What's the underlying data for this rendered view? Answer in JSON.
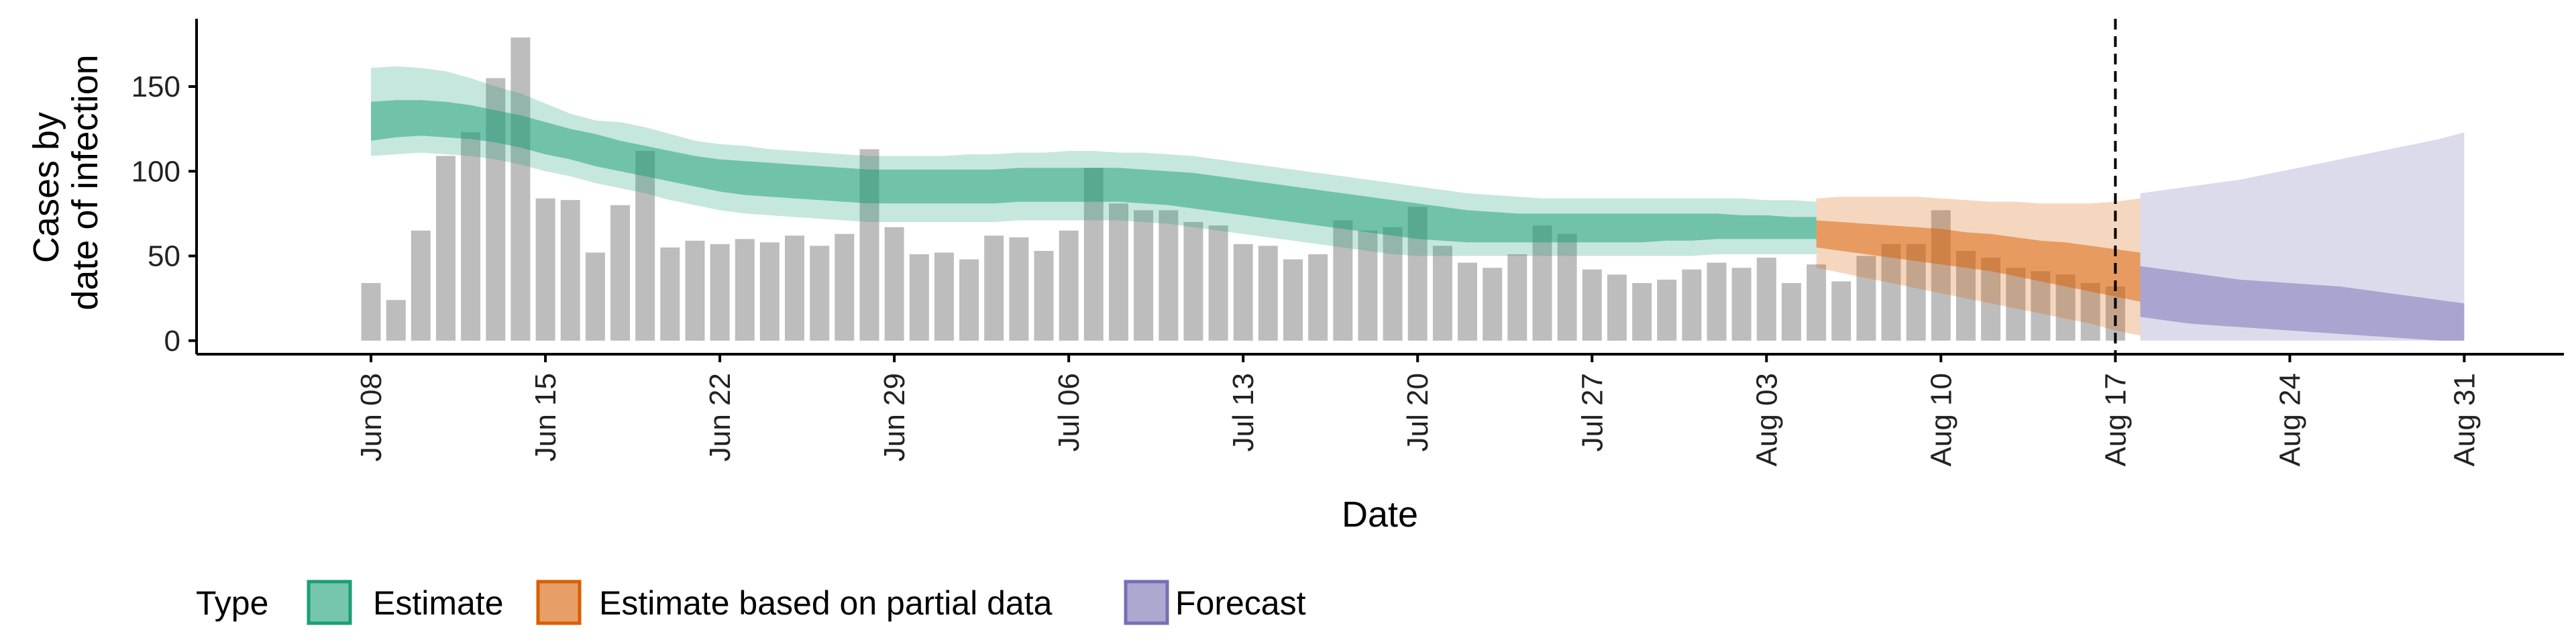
{
  "chart_data": {
    "type": "bar",
    "xlabel": "Date",
    "ylabel": [
      "Cases by",
      "date of infection"
    ],
    "ylim": [
      -8,
      190
    ],
    "yticks": [
      0,
      50,
      100,
      150
    ],
    "x_range": [
      "2020-06-01",
      "2020-09-04"
    ],
    "date_ticks": [
      {
        "date": "2020-06-08",
        "label": "Jun 08"
      },
      {
        "date": "2020-06-15",
        "label": "Jun 15"
      },
      {
        "date": "2020-06-22",
        "label": "Jun 22"
      },
      {
        "date": "2020-06-29",
        "label": "Jun 29"
      },
      {
        "date": "2020-07-06",
        "label": "Jul 06"
      },
      {
        "date": "2020-07-13",
        "label": "Jul 13"
      },
      {
        "date": "2020-07-20",
        "label": "Jul 20"
      },
      {
        "date": "2020-07-27",
        "label": "Jul 27"
      },
      {
        "date": "2020-08-03",
        "label": "Aug 03"
      },
      {
        "date": "2020-08-10",
        "label": "Aug 10"
      },
      {
        "date": "2020-08-17",
        "label": "Aug 17"
      },
      {
        "date": "2020-08-24",
        "label": "Aug 24"
      },
      {
        "date": "2020-08-31",
        "label": "Aug 31"
      }
    ],
    "vline_date": "2020-08-17",
    "bars": {
      "start_date": "2020-06-08",
      "color": "#bdbdbd",
      "values": [
        34,
        24,
        65,
        109,
        123,
        155,
        179,
        84,
        83,
        52,
        80,
        112,
        55,
        59,
        57,
        60,
        58,
        62,
        56,
        63,
        113,
        67,
        51,
        52,
        48,
        62,
        61,
        53,
        65,
        102,
        81,
        77,
        77,
        70,
        68,
        57,
        56,
        48,
        51,
        71,
        65,
        67,
        79,
        56,
        46,
        43,
        51,
        68,
        63,
        42,
        39,
        34,
        36,
        42,
        46,
        43,
        49,
        34,
        45,
        35,
        50,
        57,
        57,
        77,
        53,
        49,
        43,
        41,
        39,
        34,
        32
      ]
    },
    "series": [
      {
        "name": "Estimate",
        "color": "#1b9e77",
        "start_date": "2020-06-08",
        "median": [
          128,
          130,
          131,
          130,
          128,
          125,
          122,
          119,
          115,
          112,
          109,
          106,
          103,
          100,
          98,
          97,
          96,
          95,
          94,
          93,
          92,
          92,
          92,
          92,
          92,
          92,
          93,
          93,
          93,
          93,
          93,
          92,
          91,
          90,
          88,
          86,
          84,
          82,
          80,
          78,
          76,
          74,
          72,
          71,
          70,
          69,
          68,
          67,
          67,
          67,
          67,
          67,
          67,
          67,
          67,
          67,
          67,
          66,
          66
        ],
        "inner": [
          [
            118,
            120,
            121,
            120,
            119,
            117,
            114,
            110,
            107,
            103,
            100,
            97,
            94,
            91,
            88,
            86,
            85,
            84,
            83,
            82,
            81,
            81,
            81,
            81,
            81,
            81,
            82,
            82,
            82,
            82,
            82,
            81,
            80,
            78,
            76,
            74,
            72,
            70,
            68,
            66,
            64,
            62,
            60,
            59,
            58,
            58,
            58,
            58,
            58,
            58,
            58,
            58,
            59,
            59,
            60,
            60,
            60,
            60,
            60
          ],
          [
            141,
            142,
            142,
            141,
            139,
            136,
            133,
            129,
            125,
            122,
            118,
            115,
            112,
            109,
            107,
            106,
            105,
            104,
            103,
            102,
            101,
            101,
            101,
            101,
            101,
            101,
            102,
            102,
            102,
            102,
            102,
            101,
            100,
            99,
            97,
            95,
            93,
            91,
            89,
            87,
            85,
            83,
            81,
            79,
            77,
            76,
            75,
            75,
            75,
            75,
            75,
            75,
            75,
            75,
            75,
            74,
            74,
            73,
            73
          ]
        ],
        "outer": [
          [
            109,
            110,
            111,
            110,
            109,
            107,
            104,
            100,
            97,
            93,
            90,
            87,
            83,
            80,
            77,
            75,
            74,
            73,
            72,
            71,
            70,
            70,
            70,
            70,
            70,
            70,
            71,
            71,
            71,
            71,
            71,
            70,
            69,
            67,
            65,
            63,
            61,
            59,
            57,
            55,
            53,
            51,
            50,
            50,
            50,
            50,
            50,
            50,
            50,
            50,
            50,
            50,
            50,
            50,
            51,
            51,
            51,
            51,
            51
          ],
          [
            161,
            162,
            161,
            159,
            155,
            150,
            146,
            140,
            134,
            130,
            129,
            126,
            122,
            118,
            116,
            115,
            113,
            112,
            111,
            110,
            109,
            109,
            109,
            109,
            110,
            110,
            111,
            111,
            112,
            112,
            111,
            111,
            110,
            109,
            107,
            105,
            103,
            101,
            99,
            97,
            95,
            93,
            91,
            89,
            87,
            86,
            85,
            84,
            84,
            84,
            84,
            84,
            84,
            84,
            84,
            84,
            83,
            83,
            82
          ]
        ]
      },
      {
        "name": "Estimate based on partial data",
        "color": "#d95f02",
        "start_date": "2020-08-05",
        "median": [
          65,
          63,
          61,
          60,
          58,
          56,
          54,
          52,
          50,
          47,
          45,
          43,
          40,
          38
        ],
        "inner": [
          [
            55,
            53,
            51,
            49,
            47,
            45,
            43,
            41,
            38,
            35,
            32,
            29,
            26,
            23
          ],
          [
            71,
            70,
            69,
            68,
            67,
            66,
            64,
            63,
            61,
            59,
            58,
            56,
            54,
            52
          ]
        ],
        "outer": [
          [
            43,
            40,
            37,
            34,
            31,
            28,
            25,
            22,
            19,
            16,
            13,
            10,
            6,
            3
          ],
          [
            84,
            85,
            85,
            85,
            85,
            84,
            83,
            82,
            82,
            81,
            81,
            81,
            82,
            84
          ]
        ]
      },
      {
        "name": "Forecast",
        "color": "#7570b3",
        "start_date": "2020-08-18",
        "median": [
          29,
          28,
          27,
          26,
          25,
          24,
          23,
          22,
          21,
          20,
          19,
          18,
          17,
          16
        ],
        "inner": [
          [
            14,
            12,
            10,
            9,
            8,
            7,
            6,
            5,
            4,
            3,
            2,
            1,
            0,
            0
          ],
          [
            44,
            42,
            40,
            38,
            36,
            35,
            34,
            33,
            32,
            30,
            28,
            26,
            24,
            22
          ]
        ],
        "outer": [
          [
            0,
            0,
            0,
            0,
            0,
            0,
            0,
            0,
            0,
            0,
            0,
            0,
            0,
            0
          ],
          [
            87,
            89,
            91,
            93,
            95,
            98,
            101,
            104,
            107,
            110,
            113,
            116,
            119,
            123
          ]
        ]
      }
    ],
    "legend": {
      "title": "Type",
      "position": "bottom-left",
      "items": [
        "Estimate",
        "Estimate based on partial data",
        "Forecast"
      ]
    },
    "grid": false
  }
}
